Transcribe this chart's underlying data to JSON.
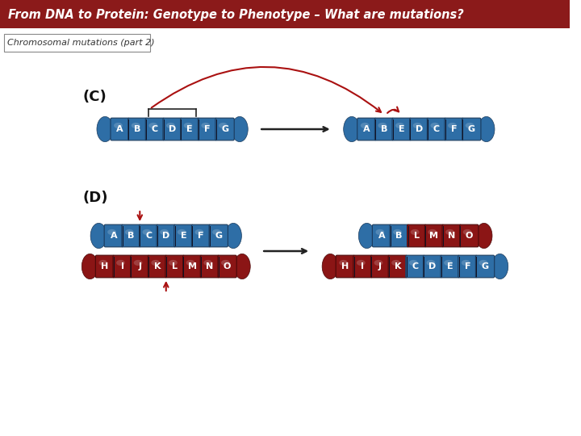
{
  "title": "From DNA to Protein: Genotype to Phenotype – What are mutations?",
  "subtitle": "Chromosomal mutations (part 2)",
  "title_bg": "#8B1A1A",
  "title_color": "#FFFFFF",
  "bg_color": "#FFFFFF",
  "label_C": "(C)",
  "label_D": "(D)",
  "c_left_beads": [
    "A",
    "B",
    "C",
    "D",
    "E",
    "F",
    "G"
  ],
  "c_left_colors": [
    "blue",
    "blue",
    "blue",
    "blue",
    "blue",
    "blue",
    "blue"
  ],
  "c_right_beads": [
    "A",
    "B",
    "E",
    "D",
    "C",
    "F",
    "G"
  ],
  "c_right_colors": [
    "blue",
    "blue",
    "blue",
    "blue",
    "blue",
    "blue",
    "blue"
  ],
  "d_top_left_beads": [
    "A",
    "B",
    "C",
    "D",
    "E",
    "F",
    "G"
  ],
  "d_top_left_colors": [
    "blue",
    "blue",
    "blue",
    "blue",
    "blue",
    "blue",
    "blue"
  ],
  "d_bot_left_beads": [
    "H",
    "I",
    "J",
    "K",
    "L",
    "M",
    "N",
    "O"
  ],
  "d_bot_left_colors": [
    "red",
    "red",
    "red",
    "red",
    "red",
    "red",
    "red",
    "red"
  ],
  "d_top_right_beads": [
    "A",
    "B",
    "L",
    "M",
    "N",
    "O"
  ],
  "d_top_right_colors": [
    "blue",
    "blue",
    "red",
    "red",
    "red",
    "red"
  ],
  "d_bot_right_beads": [
    "H",
    "I",
    "J",
    "K",
    "C",
    "D",
    "E",
    "F",
    "G"
  ],
  "d_bot_right_colors": [
    "red",
    "red",
    "red",
    "red",
    "blue",
    "blue",
    "blue",
    "blue",
    "blue"
  ],
  "blue_bead": "#2E6EA6",
  "red_bead": "#8B1515",
  "bead_text_color": "#FFFFFF",
  "arrow_color": "#222222",
  "red_arrow_color": "#AA1111",
  "bead_r": 13,
  "title_fontsize": 10.5,
  "subtitle_fontsize": 8,
  "label_fontsize": 13
}
